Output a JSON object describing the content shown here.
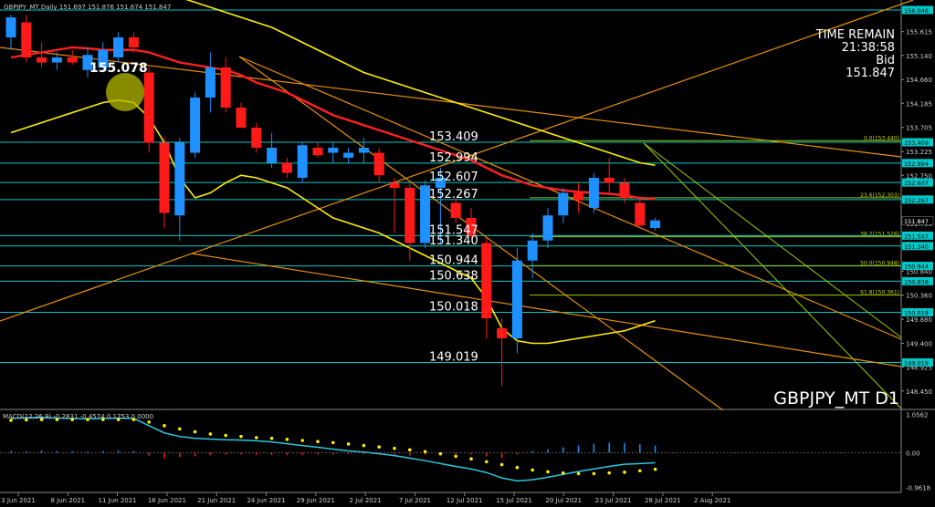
{
  "window": {
    "header": "GBPJPY_MT,Daily 151.697 151.876 151.674 151.847",
    "symbol_label": "GBPJPY_MT D1",
    "time_remain_label": "TIME REMAIN",
    "time_remain_value": "21:38:58",
    "bid_label": "Bid",
    "bid_value": "151.847",
    "highlight_label": "155.078",
    "macd_header": "MACD(12,26,9) -0.2831 -0.4574 0.1753 0.0000"
  },
  "colors": {
    "background": "#000000",
    "bull": "#1e90ff",
    "bear": "#ff1a1a",
    "level_line": "#00c8c8",
    "ma_red": "#ff2020",
    "bands": "#ffee00",
    "trend_orange": "#e8900a",
    "fib_green": "#99cc00",
    "axis_text": "#cccccc",
    "macd_line": "#28c8e0",
    "macd_signal": "#ffee00"
  },
  "chart_data": [
    {
      "type": "candlestick",
      "title": "GBPJPY_MT D1",
      "ylim": [
        148.1,
        156.1
      ],
      "x_tick_labels": [
        "3 Jun 2021",
        "8 Jun 2021",
        "11 Jun 2021",
        "16 Jun 2021",
        "21 Jun 2021",
        "24 Jun 2021",
        "29 Jun 2021",
        "2 Jul 2021",
        "7 Jul 2021",
        "12 Jul 2021",
        "15 Jul 2021",
        "20 Jul 2021",
        "23 Jul 2021",
        "28 Jul 2021",
        "2 Aug 2021"
      ],
      "y_tick_labels": [
        "155.615",
        "155.140",
        "154.660",
        "154.185",
        "153.705",
        "153.225",
        "152.750",
        "152.270",
        "151.795",
        "151.315",
        "150.840",
        "150.360",
        "149.880",
        "149.400",
        "148.925",
        "148.450"
      ],
      "candles": [
        {
          "o": 155.5,
          "h": 155.95,
          "l": 155.25,
          "c": 155.9
        },
        {
          "o": 155.8,
          "h": 155.95,
          "l": 155.0,
          "c": 155.1
        },
        {
          "o": 155.1,
          "h": 155.4,
          "l": 154.9,
          "c": 155.0
        },
        {
          "o": 155.0,
          "h": 155.2,
          "l": 154.85,
          "c": 155.1
        },
        {
          "o": 155.1,
          "h": 155.25,
          "l": 154.95,
          "c": 155.0
        },
        {
          "o": 154.85,
          "h": 155.3,
          "l": 154.7,
          "c": 155.15
        },
        {
          "o": 154.9,
          "h": 155.4,
          "l": 154.8,
          "c": 155.25
        },
        {
          "o": 155.1,
          "h": 155.6,
          "l": 155.0,
          "c": 155.5
        },
        {
          "o": 155.5,
          "h": 155.6,
          "l": 155.2,
          "c": 155.3
        },
        {
          "o": 154.8,
          "h": 154.9,
          "l": 153.2,
          "c": 153.4
        },
        {
          "o": 153.4,
          "h": 153.5,
          "l": 151.7,
          "c": 152.0
        },
        {
          "o": 151.95,
          "h": 153.5,
          "l": 151.45,
          "c": 153.4
        },
        {
          "o": 153.2,
          "h": 154.4,
          "l": 153.1,
          "c": 154.3
        },
        {
          "o": 154.3,
          "h": 155.2,
          "l": 154.0,
          "c": 154.9
        },
        {
          "o": 154.9,
          "h": 155.1,
          "l": 154.0,
          "c": 154.1
        },
        {
          "o": 154.1,
          "h": 154.2,
          "l": 153.7,
          "c": 153.7
        },
        {
          "o": 153.7,
          "h": 153.8,
          "l": 153.2,
          "c": 153.3
        },
        {
          "o": 153.0,
          "h": 153.6,
          "l": 152.9,
          "c": 153.3
        },
        {
          "o": 153.0,
          "h": 153.1,
          "l": 152.7,
          "c": 152.8
        },
        {
          "o": 152.7,
          "h": 153.4,
          "l": 152.6,
          "c": 153.35
        },
        {
          "o": 153.3,
          "h": 153.4,
          "l": 153.1,
          "c": 153.15
        },
        {
          "o": 153.2,
          "h": 153.4,
          "l": 153.0,
          "c": 153.3
        },
        {
          "o": 153.1,
          "h": 153.3,
          "l": 153.0,
          "c": 153.2
        },
        {
          "o": 153.2,
          "h": 153.5,
          "l": 153.0,
          "c": 153.3
        },
        {
          "o": 153.2,
          "h": 153.3,
          "l": 152.6,
          "c": 152.75
        },
        {
          "o": 152.6,
          "h": 152.7,
          "l": 151.6,
          "c": 152.5
        },
        {
          "o": 152.5,
          "h": 152.6,
          "l": 151.05,
          "c": 151.4
        },
        {
          "o": 151.4,
          "h": 152.65,
          "l": 151.3,
          "c": 152.55
        },
        {
          "o": 152.5,
          "h": 152.9,
          "l": 151.4,
          "c": 152.7
        },
        {
          "o": 152.2,
          "h": 152.3,
          "l": 151.8,
          "c": 151.9
        },
        {
          "o": 151.9,
          "h": 152.1,
          "l": 151.5,
          "c": 151.55
        },
        {
          "o": 151.4,
          "h": 151.5,
          "l": 149.5,
          "c": 149.9
        },
        {
          "o": 149.7,
          "h": 149.9,
          "l": 148.55,
          "c": 149.5
        },
        {
          "o": 149.5,
          "h": 151.3,
          "l": 149.2,
          "c": 151.05
        },
        {
          "o": 151.05,
          "h": 151.6,
          "l": 150.7,
          "c": 151.45
        },
        {
          "o": 151.45,
          "h": 152.1,
          "l": 151.3,
          "c": 151.95
        },
        {
          "o": 151.95,
          "h": 152.5,
          "l": 151.8,
          "c": 152.4
        },
        {
          "o": 152.4,
          "h": 152.6,
          "l": 152.0,
          "c": 152.25
        },
        {
          "o": 152.1,
          "h": 152.8,
          "l": 152.0,
          "c": 152.7
        },
        {
          "o": 152.7,
          "h": 153.1,
          "l": 152.4,
          "c": 152.6
        },
        {
          "o": 152.6,
          "h": 152.7,
          "l": 152.2,
          "c": 152.3
        },
        {
          "o": 152.2,
          "h": 152.3,
          "l": 151.7,
          "c": 151.75
        },
        {
          "o": 151.7,
          "h": 151.9,
          "l": 151.65,
          "c": 151.85
        }
      ],
      "levels": [
        {
          "price": 153.409,
          "label": "153.409"
        },
        {
          "price": 152.994,
          "label": "152.994"
        },
        {
          "price": 152.607,
          "label": "152.607"
        },
        {
          "price": 152.267,
          "label": "152.267"
        },
        {
          "price": 151.547,
          "label": "151.547"
        },
        {
          "price": 151.34,
          "label": "151.340"
        },
        {
          "price": 150.944,
          "label": "150.944"
        },
        {
          "price": 150.638,
          "label": "150.638"
        },
        {
          "price": 150.018,
          "label": "150.018"
        },
        {
          "price": 149.019,
          "label": "149.019"
        },
        {
          "price": 156.046,
          "label": "156.046"
        }
      ],
      "fib_levels": [
        {
          "price": 153.44,
          "label": "0.0(153.440)"
        },
        {
          "price": 152.303,
          "label": "23.6(152.303)"
        },
        {
          "price": 151.526,
          "label": "38.2(151.526)"
        },
        {
          "price": 150.948,
          "label": "50.0(150.948)"
        },
        {
          "price": 150.361,
          "label": "61.8(150.361)"
        }
      ],
      "tags": [
        "156.046",
        "153.409",
        "152.994",
        "152.607",
        "152.267",
        "151.847",
        "151.547",
        "151.340",
        "150.944",
        "150.638",
        "150.018",
        "149.019"
      ],
      "ma_red": [
        155.1,
        155.15,
        155.2,
        155.25,
        155.3,
        155.28,
        155.25,
        155.25,
        155.25,
        155.2,
        155.1,
        155.0,
        154.95,
        154.9,
        154.85,
        154.75,
        154.6,
        154.5,
        154.4,
        154.25,
        154.1,
        153.95,
        153.85,
        153.75,
        153.65,
        153.55,
        153.45,
        153.35,
        153.25,
        153.15,
        153.05,
        152.9,
        152.75,
        152.65,
        152.55,
        152.5,
        152.45,
        152.42,
        152.4,
        152.38,
        152.35,
        152.3,
        152.28
      ],
      "band_upper": [
        156.4,
        156.45,
        156.5,
        156.5,
        156.5,
        156.45,
        156.4,
        156.4,
        156.4,
        156.4,
        156.35,
        156.3,
        156.2,
        156.1,
        156.0,
        155.9,
        155.8,
        155.7,
        155.55,
        155.4,
        155.25,
        155.1,
        154.95,
        154.8,
        154.7,
        154.6,
        154.5,
        154.4,
        154.3,
        154.2,
        154.1,
        154.0,
        153.9,
        153.8,
        153.7,
        153.6,
        153.5,
        153.4,
        153.3,
        153.2,
        153.1,
        153.0,
        152.95
      ],
      "band_lower": [
        153.6,
        153.7,
        153.8,
        153.9,
        154.0,
        154.1,
        154.2,
        154.25,
        154.2,
        153.9,
        153.4,
        152.7,
        152.3,
        152.4,
        152.6,
        152.75,
        152.7,
        152.6,
        152.5,
        152.3,
        152.1,
        151.9,
        151.8,
        151.7,
        151.6,
        151.45,
        151.3,
        151.15,
        151.0,
        150.85,
        150.7,
        150.3,
        149.7,
        149.45,
        149.4,
        149.4,
        149.45,
        149.5,
        149.55,
        149.6,
        149.65,
        149.75,
        149.85
      ]
    },
    {
      "type": "macd",
      "title": "MACD(12,26,9) -0.2831 -0.4574 0.1753 0.0000",
      "ylim": [
        -1.05,
        1.15
      ],
      "y_tick_labels": [
        "1.0562",
        "0.00",
        "-0.9618"
      ],
      "histogram": [
        0.05,
        0.04,
        0.06,
        0.05,
        0.04,
        0.03,
        0.05,
        0.06,
        0.05,
        -0.08,
        -0.15,
        -0.12,
        -0.1,
        -0.06,
        -0.05,
        -0.05,
        -0.06,
        -0.06,
        -0.07,
        -0.06,
        -0.05,
        -0.05,
        -0.04,
        -0.04,
        -0.04,
        -0.05,
        -0.08,
        -0.06,
        -0.05,
        -0.04,
        -0.05,
        -0.1,
        -0.15,
        -0.05,
        0.05,
        0.1,
        0.15,
        0.2,
        0.25,
        0.28,
        0.27,
        0.23,
        0.2
      ],
      "macd": [
        0.95,
        0.97,
        0.98,
        0.96,
        0.95,
        0.94,
        0.95,
        0.96,
        0.95,
        0.75,
        0.55,
        0.45,
        0.4,
        0.38,
        0.36,
        0.35,
        0.33,
        0.3,
        0.25,
        0.2,
        0.15,
        0.1,
        0.05,
        0.02,
        -0.03,
        -0.08,
        -0.15,
        -0.22,
        -0.3,
        -0.38,
        -0.45,
        -0.55,
        -0.7,
        -0.78,
        -0.75,
        -0.68,
        -0.6,
        -0.52,
        -0.45,
        -0.38,
        -0.32,
        -0.3,
        -0.28
      ],
      "signal": [
        0.9,
        0.91,
        0.92,
        0.92,
        0.92,
        0.92,
        0.92,
        0.92,
        0.92,
        0.85,
        0.75,
        0.66,
        0.58,
        0.52,
        0.48,
        0.45,
        0.42,
        0.4,
        0.37,
        0.34,
        0.31,
        0.28,
        0.24,
        0.2,
        0.16,
        0.12,
        0.08,
        0.03,
        -0.03,
        -0.1,
        -0.17,
        -0.25,
        -0.33,
        -0.41,
        -0.48,
        -0.53,
        -0.56,
        -0.58,
        -0.58,
        -0.56,
        -0.54,
        -0.5,
        -0.46
      ]
    }
  ]
}
